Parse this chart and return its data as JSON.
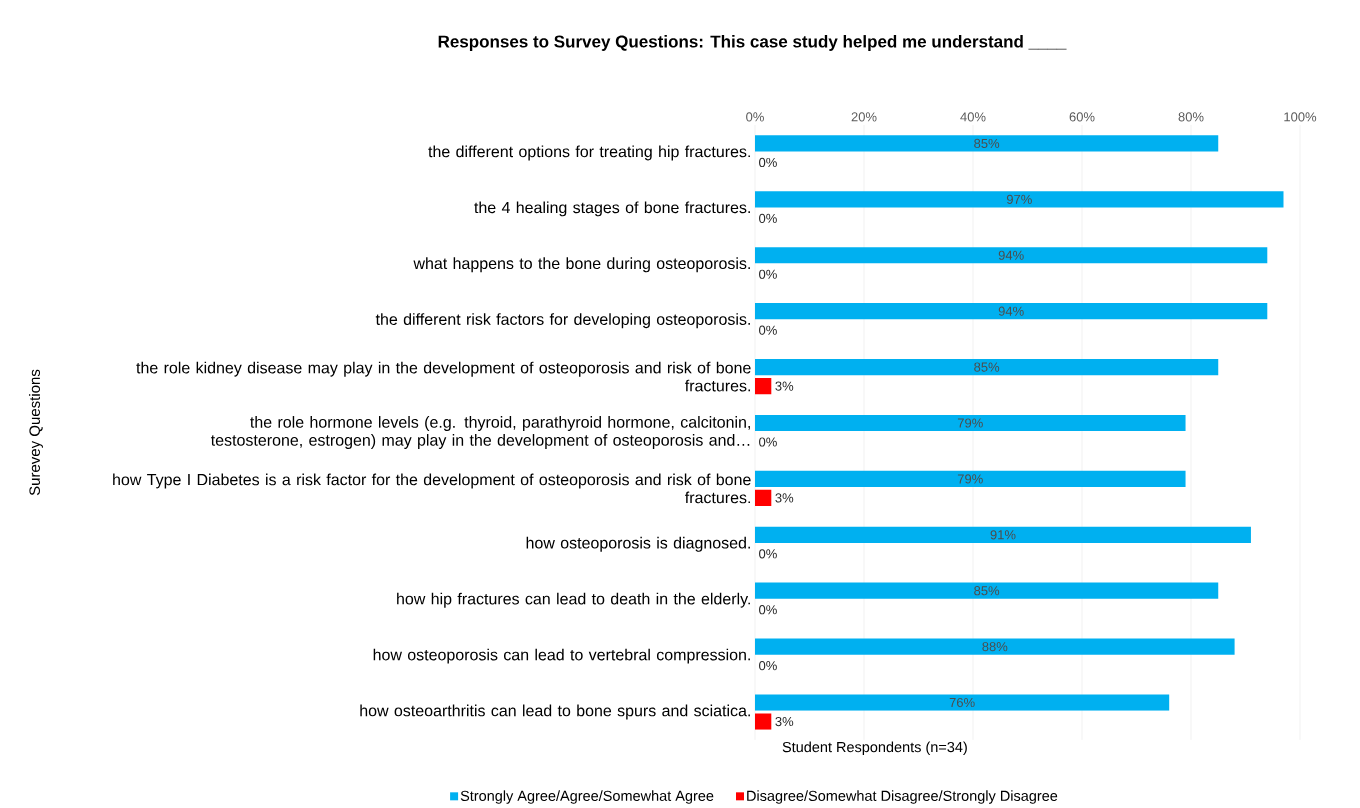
{
  "chart_data": {
    "type": "bar",
    "orientation": "horizontal",
    "title": "Responses to Survey Questions:  This case study helped me understand ____",
    "xlabel": "Student Respondents (n=34)",
    "ylabel": "Surevey Questions",
    "categories": [
      "the different options for treating hip fractures.",
      "the 4 healing stages of bone fractures.",
      "what happens to the bone during osteoporosis.",
      "the different risk factors for developing osteoporosis.",
      "the role kidney disease may play in the development of osteoporosis and risk of bone fractures.",
      "the role hormone levels (e.g. thyroid, parathyroid hormone, calcitonin, testosterone, estrogen) may play in the development of osteoporosis and…",
      "how Type I Diabetes is a risk factor for the development of osteoporosis and risk of bone fractures.",
      "how osteoporosis is diagnosed.",
      "how hip fractures can lead to death in the elderly.",
      "how osteoporosis can lead to vertebral compression.",
      "how osteoarthritis can lead to bone spurs and sciatica."
    ],
    "series": [
      {
        "name": "Strongly Agree/Agree/Somewhat Agree",
        "color": "#00b0f0",
        "values": [
          85,
          97,
          94,
          94,
          85,
          79,
          79,
          91,
          85,
          88,
          76
        ],
        "value_labels": [
          "85%",
          "97%",
          "94%",
          "94%",
          "85%",
          "79%",
          "79%",
          "91%",
          "85%",
          "88%",
          "76%"
        ]
      },
      {
        "name": "Disagree/Somewhat Disagree/Strongly Disagree",
        "color": "#ff0000",
        "values": [
          0,
          0,
          0,
          0,
          3,
          0,
          3,
          0,
          0,
          0,
          3
        ],
        "value_labels": [
          "0%",
          "0%",
          "0%",
          "0%",
          "3%",
          "0%",
          "3%",
          "0%",
          "0%",
          "0%",
          "3%"
        ]
      }
    ],
    "xlim": [
      0,
      100
    ],
    "xticks": [
      {
        "value": 0,
        "label": "0%"
      },
      {
        "value": 20,
        "label": "20%"
      },
      {
        "value": 40,
        "label": "40%"
      },
      {
        "value": 60,
        "label": "60%"
      },
      {
        "value": 80,
        "label": "80%"
      },
      {
        "value": 100,
        "label": "100%"
      }
    ],
    "grid": "x",
    "legend": "bottom"
  }
}
